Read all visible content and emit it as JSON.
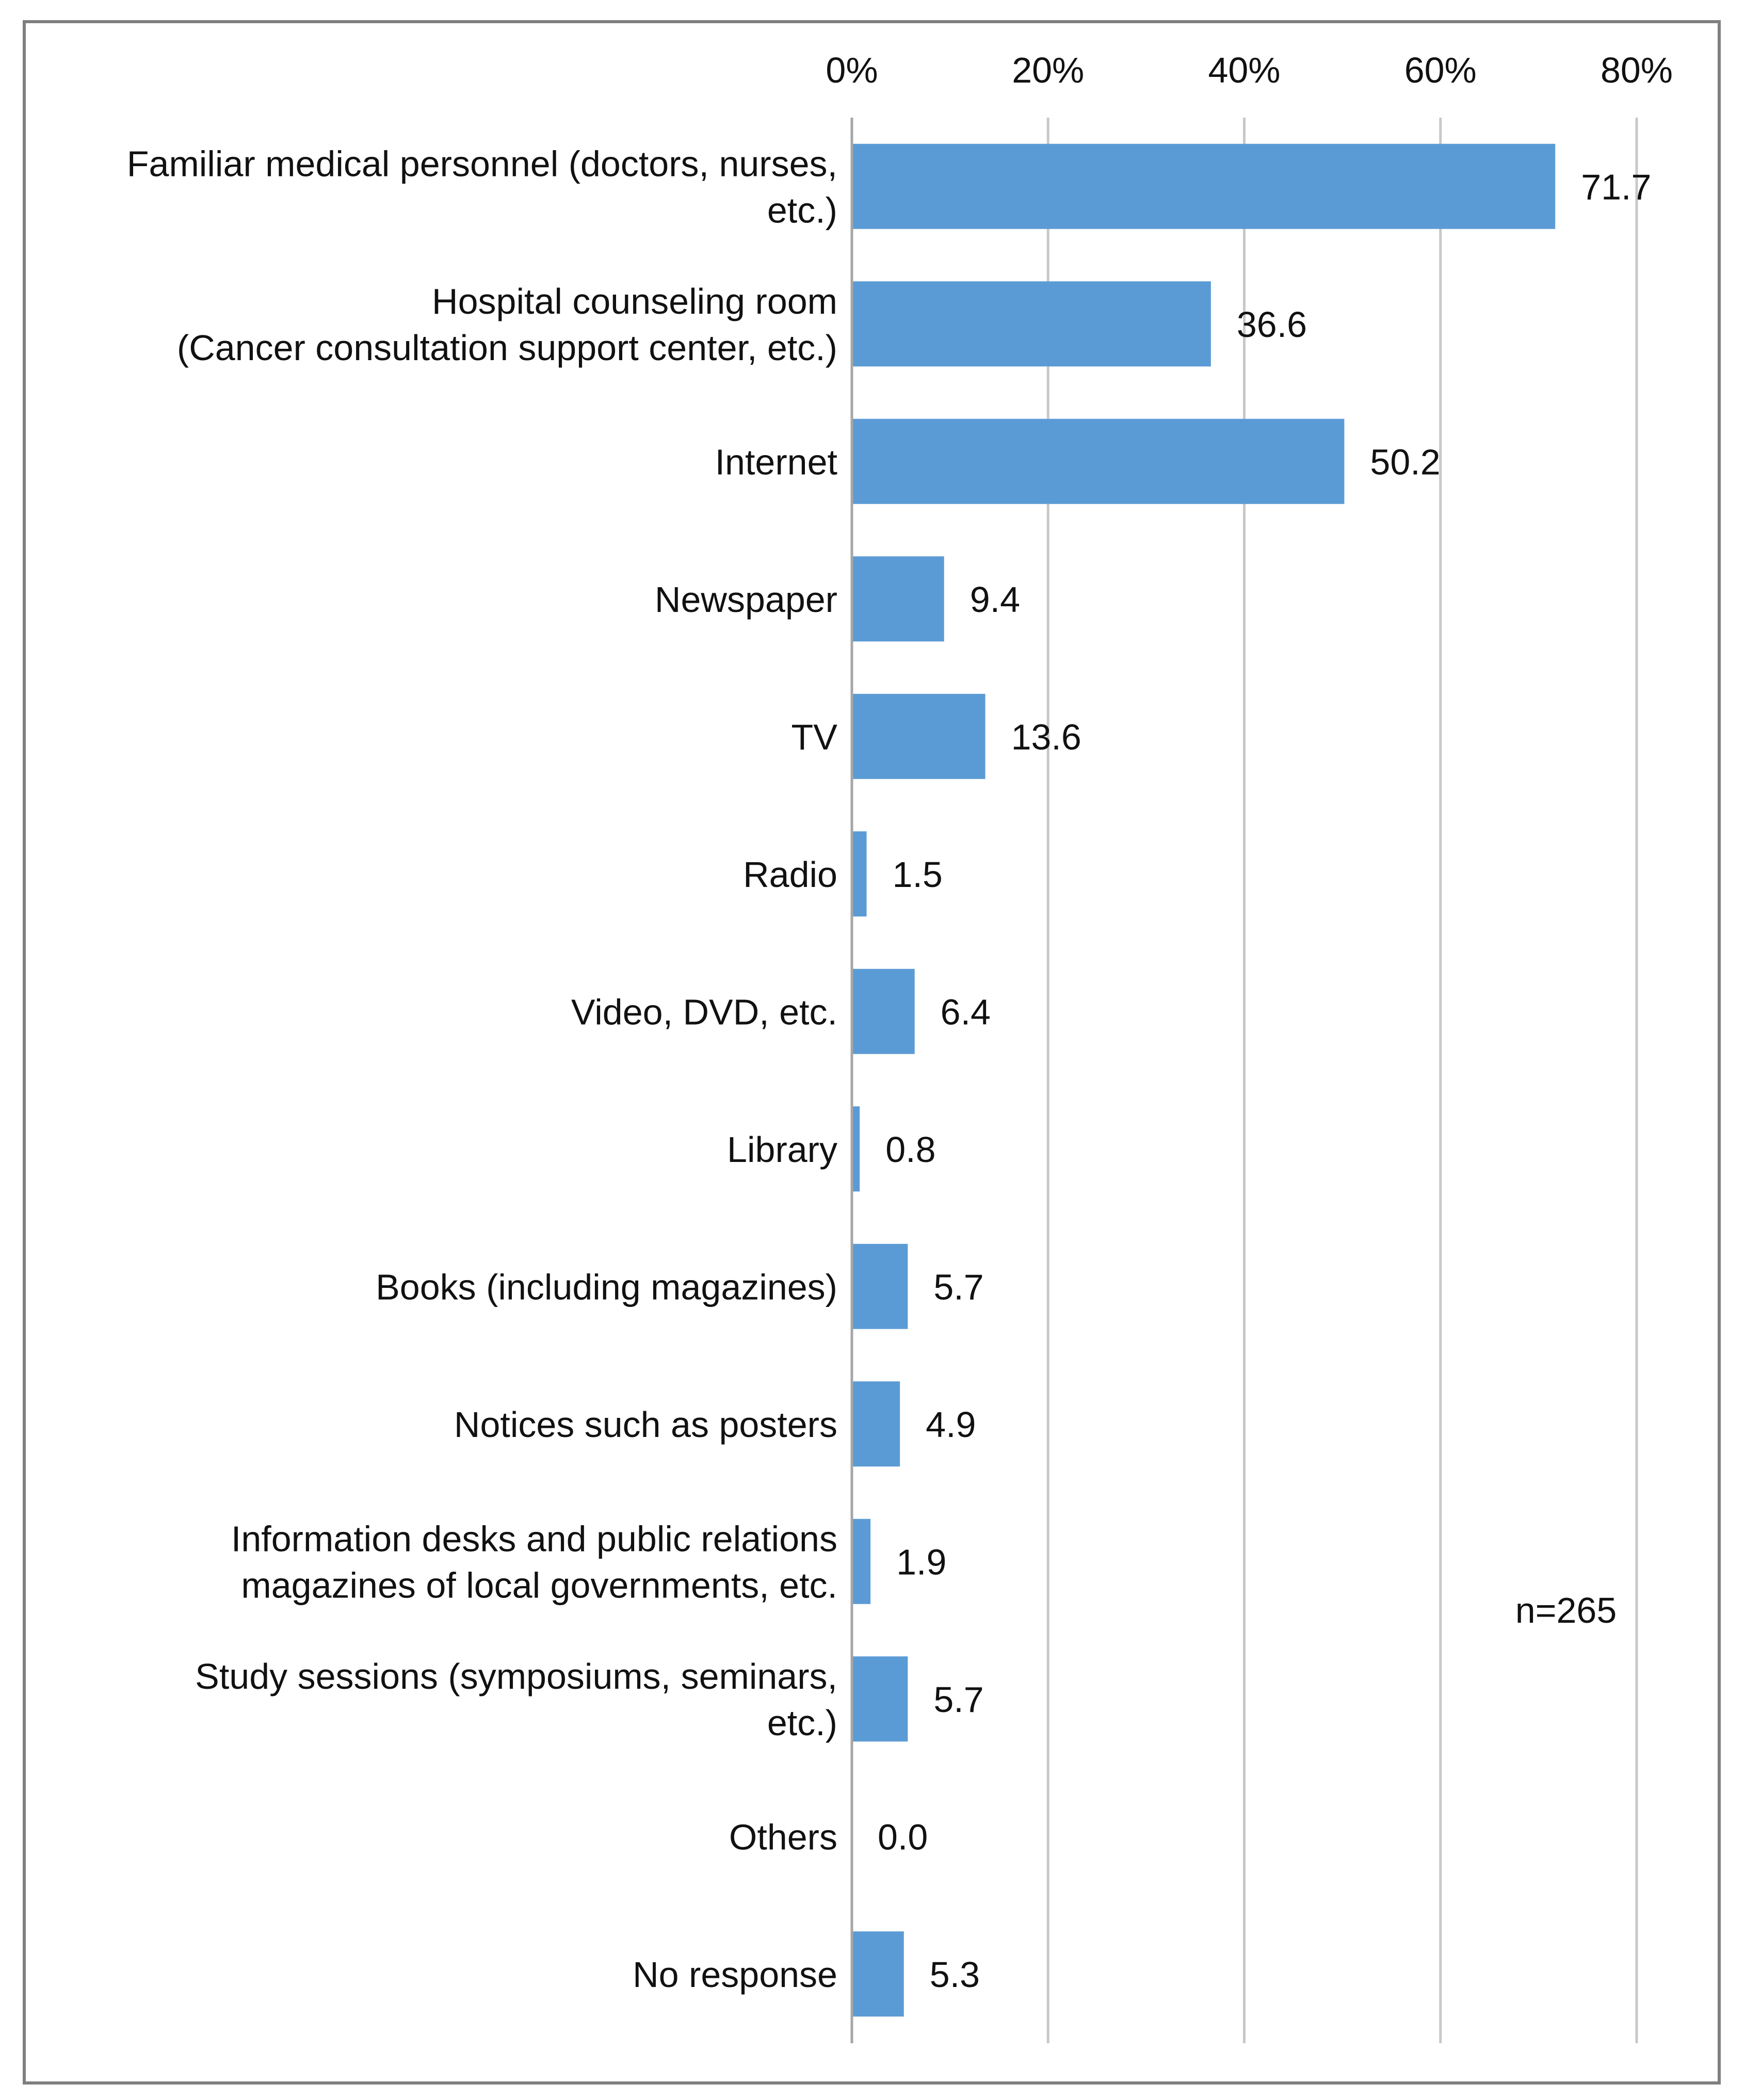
{
  "chart_data": {
    "type": "bar",
    "orientation": "horizontal",
    "title": "",
    "xlabel": "",
    "ylabel": "",
    "xlim": [
      0,
      80
    ],
    "x_ticks": [
      0,
      20,
      40,
      60,
      80
    ],
    "x_tick_labels": [
      "0%",
      "20%",
      "40%",
      "60%",
      "80%"
    ],
    "x_axis_position": "top",
    "grid": true,
    "legend": "none",
    "categories": [
      [
        "Familiar medical personnel (doctors, nurses,",
        "etc.)"
      ],
      [
        "Hospital counseling room",
        "(Cancer consultation support center, etc.)"
      ],
      [
        "Internet"
      ],
      [
        "Newspaper"
      ],
      [
        "TV"
      ],
      [
        "Radio"
      ],
      [
        "Video, DVD, etc."
      ],
      [
        "Library"
      ],
      [
        "Books (including magazines)"
      ],
      [
        "Notices such as posters"
      ],
      [
        "Information desks and public relations",
        "magazines of local governments, etc."
      ],
      [
        "Study sessions (symposiums, seminars,",
        "etc.)"
      ],
      [
        "Others"
      ],
      [
        "No response"
      ]
    ],
    "values": [
      71.7,
      36.6,
      50.2,
      9.4,
      13.6,
      1.5,
      6.4,
      0.8,
      5.7,
      4.9,
      1.9,
      5.7,
      0.0,
      5.3
    ],
    "value_labels": [
      "71.7",
      "36.6",
      "50.2",
      "9.4",
      "13.6",
      "1.5",
      "6.4",
      "0.8",
      "5.7",
      "4.9",
      "1.9",
      "5.7",
      "0.0",
      "5.3"
    ],
    "annotation": "n=265",
    "colors": {
      "bar": "#5b9bd5",
      "gridline": "#c8c8c8",
      "axis": "#a6a6a6",
      "frame": "#7f7f7f",
      "text": "#111111"
    }
  }
}
